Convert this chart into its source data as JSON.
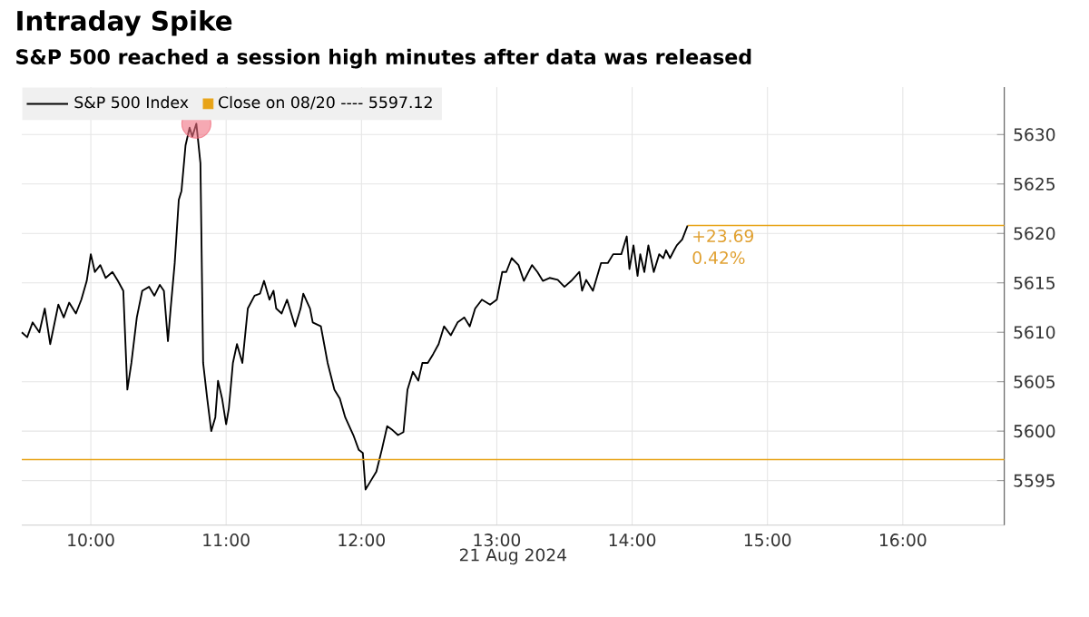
{
  "chart_data": {
    "type": "line",
    "title": "Intraday Spike",
    "subtitle": "S&P 500 reached a session high minutes after data was released",
    "xlabel": "21 Aug 2024",
    "x": [
      9.49,
      9.53,
      9.57,
      9.62,
      9.66,
      9.7,
      9.76,
      9.8,
      9.84,
      9.89,
      9.93,
      9.97,
      10.0,
      10.03,
      10.07,
      10.11,
      10.16,
      10.2,
      10.24,
      10.27,
      10.3,
      10.34,
      10.38,
      10.43,
      10.47,
      10.51,
      10.54,
      10.57,
      10.59,
      10.62,
      10.65,
      10.67,
      10.7,
      10.73,
      10.75,
      10.78,
      10.81,
      10.83,
      10.86,
      10.89,
      10.92,
      10.94,
      10.97,
      11.0,
      11.02,
      11.05,
      11.08,
      11.12,
      11.16,
      11.21,
      11.25,
      11.28,
      11.32,
      11.35,
      11.37,
      11.41,
      11.45,
      11.51,
      11.55,
      11.57,
      11.62,
      11.64,
      11.7,
      11.75,
      11.8,
      11.84,
      11.88,
      11.94,
      11.98,
      12.01,
      12.03,
      12.07,
      12.11,
      12.15,
      12.19,
      12.23,
      12.27,
      12.31,
      12.34,
      12.38,
      12.42,
      12.45,
      12.49,
      12.53,
      12.57,
      12.61,
      12.66,
      12.71,
      12.76,
      12.8,
      12.84,
      12.89,
      12.95,
      13.0,
      13.04,
      13.07,
      13.11,
      13.16,
      13.2,
      13.26,
      13.3,
      13.34,
      13.39,
      13.45,
      13.5,
      13.55,
      13.61,
      13.63,
      13.66,
      13.71,
      13.77,
      13.82,
      13.86,
      13.92,
      13.96,
      13.98,
      14.01,
      14.04,
      14.06,
      14.09,
      14.12,
      14.16,
      14.2,
      14.23,
      14.25,
      14.28,
      14.31,
      14.33,
      14.37,
      14.41
    ],
    "series": [
      {
        "name": "S&P 500 Index",
        "color": "#000000",
        "values": [
          5610.0,
          5609.5,
          5611.0,
          5610.0,
          5612.4,
          5608.8,
          5612.8,
          5611.5,
          5613.0,
          5611.9,
          5613.3,
          5615.2,
          5617.9,
          5616.1,
          5616.8,
          5615.5,
          5616.1,
          5615.2,
          5614.2,
          5604.2,
          5606.9,
          5611.5,
          5614.2,
          5614.6,
          5613.7,
          5614.8,
          5614.2,
          5609.1,
          5612.4,
          5617.0,
          5623.4,
          5624.3,
          5628.9,
          5630.7,
          5629.8,
          5631.1,
          5627.1,
          5606.9,
          5603.3,
          5600.0,
          5601.4,
          5605.1,
          5603.3,
          5600.7,
          5602.3,
          5606.9,
          5608.8,
          5606.9,
          5612.4,
          5613.7,
          5613.9,
          5615.2,
          5613.3,
          5614.2,
          5612.4,
          5611.9,
          5613.3,
          5610.6,
          5612.4,
          5613.9,
          5612.4,
          5611.0,
          5610.6,
          5606.9,
          5604.2,
          5603.3,
          5601.4,
          5599.6,
          5598.1,
          5597.8,
          5594.1,
          5595.0,
          5595.9,
          5598.1,
          5600.5,
          5600.1,
          5599.6,
          5599.9,
          5604.2,
          5606.0,
          5605.1,
          5606.9,
          5606.9,
          5607.8,
          5608.8,
          5610.6,
          5609.7,
          5611.0,
          5611.5,
          5610.6,
          5612.4,
          5613.3,
          5612.8,
          5613.3,
          5616.1,
          5616.1,
          5617.5,
          5616.8,
          5615.2,
          5616.8,
          5616.1,
          5615.2,
          5615.5,
          5615.3,
          5614.6,
          5615.2,
          5616.1,
          5614.2,
          5615.3,
          5614.2,
          5617.0,
          5617.0,
          5617.9,
          5617.9,
          5619.7,
          5616.4,
          5618.8,
          5615.7,
          5617.9,
          5616.1,
          5618.8,
          5616.1,
          5617.9,
          5617.5,
          5618.3,
          5617.5,
          5618.3,
          5618.8,
          5619.4,
          5620.8
        ]
      },
      {
        "type": "scatter",
        "color": "#f07080",
        "x": [
          10.78
        ],
        "values": [
          5631.1
        ],
        "marker": "circle"
      }
    ],
    "xlim": [
      9.49,
      16.75
    ],
    "ylim": [
      5590.5,
      5634.8
    ],
    "xticks": [
      {
        "value": 10,
        "label": "10:00"
      },
      {
        "value": 11,
        "label": "11:00"
      },
      {
        "value": 12,
        "label": "12:00"
      },
      {
        "value": 13,
        "label": "13:00"
      },
      {
        "value": 14,
        "label": "14:00"
      },
      {
        "value": 15,
        "label": "15:00"
      },
      {
        "value": 16,
        "label": "16:00"
      }
    ],
    "yticks": [
      5595,
      5600,
      5605,
      5610,
      5615,
      5620,
      5625,
      5630
    ],
    "ref_lines": [
      {
        "axis": "y",
        "value": 5597.12,
        "label": "Close on 08/20 ---- 5597.12",
        "color": "#e8a317"
      },
      {
        "axis": "y",
        "value": 5620.81,
        "color": "#e8a317"
      }
    ],
    "annotations": [
      {
        "text": "+23.69",
        "x": 14.41,
        "y": 5620.81
      },
      {
        "text": "0.42%",
        "x": 14.41,
        "y": 5620.81
      }
    ],
    "grid": true,
    "legend": "top left",
    "marker": "none",
    "line_style": "solid"
  }
}
